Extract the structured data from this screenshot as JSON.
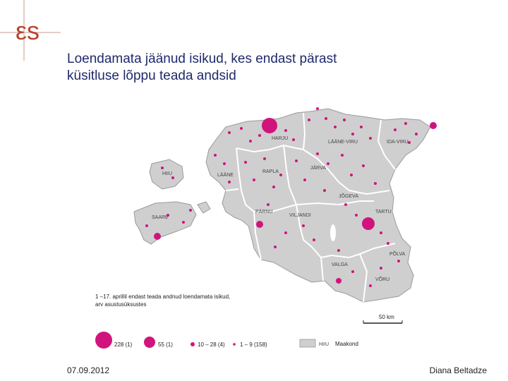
{
  "slide": {
    "title_line1": "Loendamata jäänud isikud, kes endast pärast",
    "title_line2": "küsitluse lõppu teada andsid",
    "date": "07.09.2012",
    "author": "Diana Beltadze"
  },
  "logo": {
    "icon": "es-logo-icon",
    "color": "#b8452e"
  },
  "map": {
    "regions": [
      "HARJU",
      "LÄÄNE-VIRU",
      "IDA-VIRU",
      "HIIU",
      "LÄÄNE",
      "RAPLA",
      "JÄRVA",
      "JÕGEVA",
      "SAARE",
      "PÄRNU",
      "VILJANDI",
      "TARTU",
      "PÕLVA",
      "VALGA",
      "VÕRU"
    ],
    "legend_title_line1": "1 –17. aprillil endast teada andnud loendamata isikud,",
    "legend_title_line2": "arv asustusüksustes",
    "legend_items": [
      "228 (1)",
      "55 (1)",
      "10 – 28 (4)",
      "1 – 9 (158)"
    ],
    "county_sample": "HIIU",
    "county_label": "Maakond",
    "scale_label": "50 km",
    "colors": {
      "land": "#cfcfcf",
      "border": "#ffffff",
      "marker": "#d1147d",
      "outline": "#9a9a9a"
    }
  }
}
